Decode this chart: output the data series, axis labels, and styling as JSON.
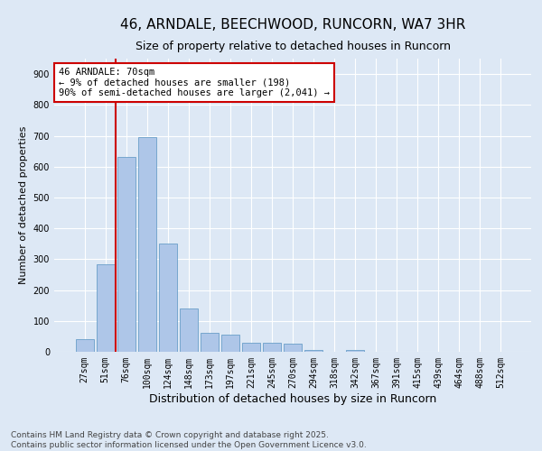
{
  "title": "46, ARNDALE, BEECHWOOD, RUNCORN, WA7 3HR",
  "subtitle": "Size of property relative to detached houses in Runcorn",
  "xlabel": "Distribution of detached houses by size in Runcorn",
  "ylabel": "Number of detached properties",
  "categories": [
    "27sqm",
    "51sqm",
    "76sqm",
    "100sqm",
    "124sqm",
    "148sqm",
    "173sqm",
    "197sqm",
    "221sqm",
    "245sqm",
    "270sqm",
    "294sqm",
    "318sqm",
    "342sqm",
    "367sqm",
    "391sqm",
    "415sqm",
    "439sqm",
    "464sqm",
    "488sqm",
    "512sqm"
  ],
  "values": [
    40,
    285,
    630,
    695,
    350,
    140,
    60,
    55,
    30,
    30,
    25,
    5,
    0,
    5,
    0,
    0,
    0,
    0,
    0,
    0,
    0
  ],
  "bar_color": "#aec6e8",
  "bar_edge_color": "#6a9fc8",
  "vline_x": 1.5,
  "vline_color": "#cc0000",
  "annotation_text": "46 ARNDALE: 70sqm\n← 9% of detached houses are smaller (198)\n90% of semi-detached houses are larger (2,041) →",
  "annotation_box_color": "#cc0000",
  "annotation_bg": "#ffffff",
  "ylim": [
    0,
    950
  ],
  "yticks": [
    0,
    100,
    200,
    300,
    400,
    500,
    600,
    700,
    800,
    900
  ],
  "background_color": "#dde8f5",
  "grid_color": "#ffffff",
  "footer": "Contains HM Land Registry data © Crown copyright and database right 2025.\nContains public sector information licensed under the Open Government Licence v3.0.",
  "title_fontsize": 11,
  "xlabel_fontsize": 9,
  "ylabel_fontsize": 8,
  "tick_fontsize": 7,
  "footer_fontsize": 6.5,
  "annot_fontsize": 7.5
}
